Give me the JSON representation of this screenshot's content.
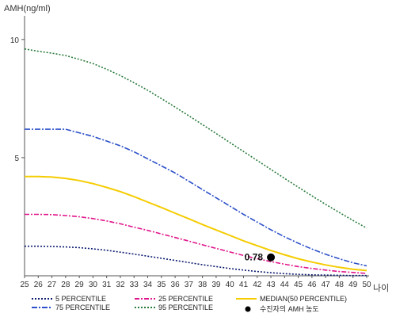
{
  "chart_data": {
    "type": "line",
    "title": "",
    "ylabel": "AMH(ng/ml)",
    "xlabel": "나이",
    "xlim": [
      25,
      50
    ],
    "ylim": [
      0,
      11
    ],
    "y_ticks": [
      5,
      10
    ],
    "x": [
      25,
      26,
      27,
      28,
      29,
      30,
      31,
      32,
      33,
      34,
      35,
      36,
      37,
      38,
      39,
      40,
      41,
      42,
      43,
      44,
      45,
      46,
      47,
      48,
      49,
      50
    ],
    "series": [
      {
        "name": "5 PERCENTILE",
        "color": "#0a1a6e",
        "dash": "2,2",
        "values": [
          1.25,
          1.25,
          1.24,
          1.22,
          1.19,
          1.14,
          1.08,
          1.0,
          0.92,
          0.83,
          0.74,
          0.65,
          0.56,
          0.47,
          0.39,
          0.31,
          0.24,
          0.18,
          0.13,
          0.09,
          0.06,
          0.04,
          0.03,
          0.02,
          0.01,
          0.01
        ]
      },
      {
        "name": "25 PERCENTILE",
        "color": "#e0168c",
        "dash": "6,2,2,2",
        "values": [
          2.6,
          2.6,
          2.59,
          2.55,
          2.5,
          2.42,
          2.32,
          2.2,
          2.06,
          1.92,
          1.77,
          1.62,
          1.47,
          1.31,
          1.16,
          1.01,
          0.86,
          0.72,
          0.6,
          0.49,
          0.39,
          0.31,
          0.24,
          0.18,
          0.14,
          0.1
        ]
      },
      {
        "name": "MEDIAN(50 PERCENTILE)",
        "color": "#f5cc00",
        "dash": "",
        "values": [
          4.2,
          4.2,
          4.18,
          4.12,
          4.03,
          3.9,
          3.74,
          3.56,
          3.35,
          3.12,
          2.89,
          2.65,
          2.41,
          2.17,
          1.94,
          1.71,
          1.48,
          1.27,
          1.07,
          0.89,
          0.72,
          0.58,
          0.46,
          0.36,
          0.28,
          0.22
        ]
      },
      {
        "name": "75 PERCENTILE",
        "color": "#2c50c8",
        "dash": "7,2,2,2",
        "values": [
          6.2,
          6.2,
          6.2,
          6.2,
          6.05,
          5.9,
          5.7,
          5.5,
          5.25,
          4.95,
          4.65,
          4.35,
          4.0,
          3.65,
          3.3,
          2.95,
          2.6,
          2.27,
          1.95,
          1.65,
          1.38,
          1.13,
          0.91,
          0.72,
          0.55,
          0.42
        ]
      },
      {
        "name": "95 PERCENTILE",
        "color": "#2a7a3c",
        "dash": "2,2",
        "values": [
          9.6,
          9.5,
          9.42,
          9.32,
          9.16,
          8.98,
          8.74,
          8.47,
          8.17,
          7.85,
          7.5,
          7.14,
          6.77,
          6.4,
          6.02,
          5.64,
          5.26,
          4.88,
          4.5,
          4.12,
          3.75,
          3.38,
          3.02,
          2.68,
          2.34,
          2.02
        ]
      }
    ],
    "marker": {
      "name": "수진자의 AMH 농도",
      "x": 43,
      "y": 0.78,
      "label": "0.78",
      "color": "#000000"
    },
    "legend_position": "bottom",
    "grid": false
  }
}
